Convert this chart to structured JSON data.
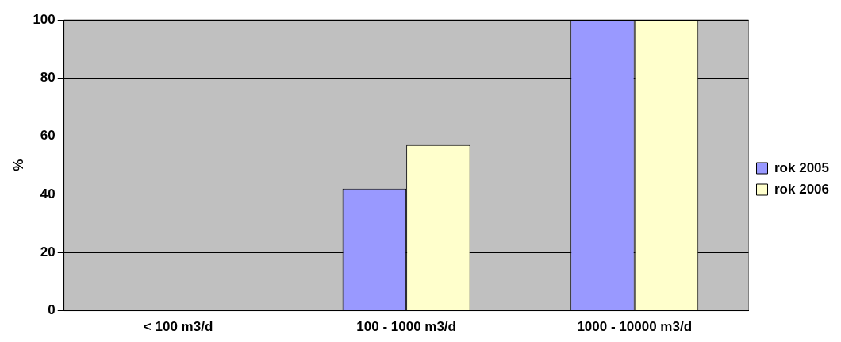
{
  "chart_data": {
    "type": "bar",
    "ylabel": "%",
    "categories": [
      "< 100 m3/d",
      "100 - 1000 m3/d",
      "1000 - 10000 m3/d"
    ],
    "series": [
      {
        "name": "rok 2005",
        "color": "#9999ff",
        "values": [
          0,
          42,
          100
        ]
      },
      {
        "name": "rok 2006",
        "color": "#ffffcc",
        "values": [
          0,
          57,
          100
        ]
      }
    ],
    "ylim": [
      0,
      100
    ],
    "yticks": [
      0,
      20,
      40,
      60,
      80,
      100
    ],
    "grid": "y",
    "legend": "right"
  }
}
